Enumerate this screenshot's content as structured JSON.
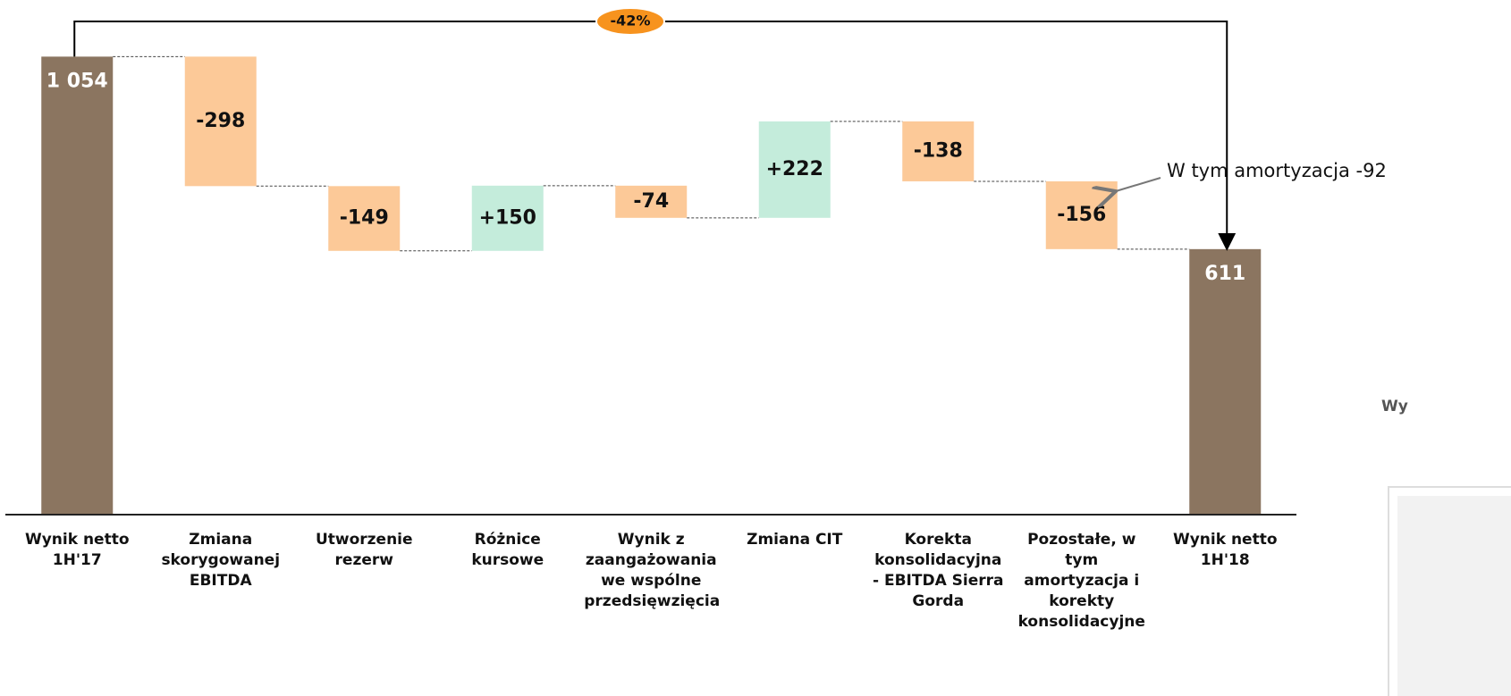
{
  "chart_data": {
    "type": "waterfall",
    "categories": [
      "Wynik netto 1H'17",
      "Zmiana skorygowanej EBITDA",
      "Utworzenie rezerw",
      "Różnice kursowe",
      "Wynik z zaangażowania we wspólne przedsięwzięcia",
      "Zmiana CIT",
      "Korekta konsolidacyjna - EBITDA Sierra Gorda",
      "Pozostałe, w tym amortyzacja i korekty konsolidacyjne",
      "Wynik netto 1H'18"
    ],
    "values": [
      1054,
      -298,
      -149,
      150,
      -74,
      222,
      -138,
      -156,
      611
    ],
    "value_labels": [
      "1 054",
      "-298",
      "-149",
      "+150",
      "-74",
      "+222",
      "-138",
      "-156",
      "611"
    ],
    "totals": [
      0,
      8
    ],
    "colors": {
      "total": "#8b7560",
      "increase": "#c4ecdb",
      "decrease": "#fcc998"
    },
    "ylim": [
      0,
      1100
    ],
    "change_label": "-42%",
    "annotation": "W tym amortyzacja -92",
    "side_label": "Wy"
  }
}
